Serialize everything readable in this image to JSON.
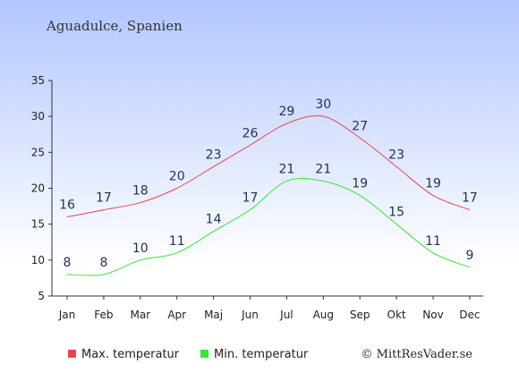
{
  "chart_data": {
    "type": "line",
    "title": "Aguadulce, Spanien",
    "categories": [
      "Jan",
      "Feb",
      "Mar",
      "Apr",
      "Maj",
      "Jun",
      "Jul",
      "Aug",
      "Sep",
      "Okt",
      "Nov",
      "Dec"
    ],
    "series": [
      {
        "name": "Max. temperatur",
        "color": "#e8474a",
        "values": [
          16,
          17,
          18,
          20,
          23,
          26,
          29,
          30,
          27,
          23,
          19,
          17
        ]
      },
      {
        "name": "Min. temperatur",
        "color": "#33e833",
        "values": [
          8,
          8,
          10,
          11,
          14,
          17,
          21,
          21,
          19,
          15,
          11,
          9
        ]
      }
    ],
    "yticks": [
      5,
      10,
      15,
      20,
      25,
      30,
      35
    ],
    "ylim": [
      5,
      35
    ],
    "grid": false,
    "legend_position": "bottom-left"
  },
  "copyright": "© MittResVader.se"
}
